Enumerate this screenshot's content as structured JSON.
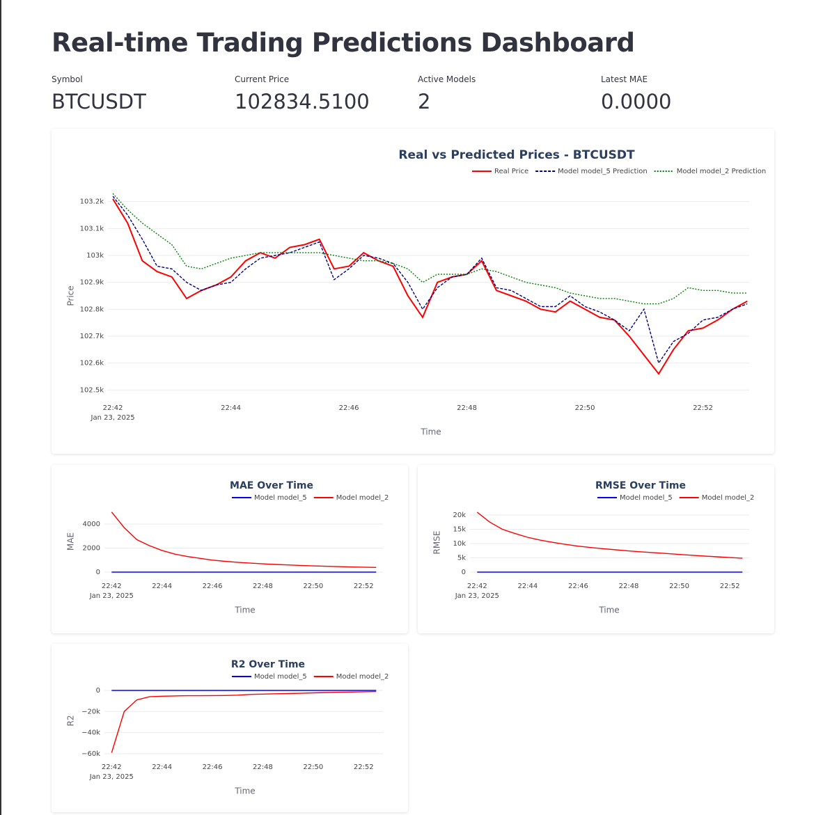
{
  "title": "Real-time Trading Predictions Dashboard",
  "metrics": [
    {
      "label": "Symbol",
      "value": "BTCUSDT"
    },
    {
      "label": "Current Price",
      "value": "102834.5100"
    },
    {
      "label": "Active Models",
      "value": "2"
    },
    {
      "label": "Latest MAE",
      "value": "0.0000"
    }
  ],
  "chart_data": [
    {
      "type": "line",
      "title": "Real vs Predicted Prices - BTCUSDT",
      "x_label": "Time",
      "y_label": "Price",
      "x_date_label": "Jan 23, 2025",
      "x": [
        "2025-01-23 22:42:00",
        "2025-01-23 22:42:15",
        "2025-01-23 22:42:30",
        "2025-01-23 22:42:45",
        "2025-01-23 22:43:00",
        "2025-01-23 22:43:15",
        "2025-01-23 22:43:30",
        "2025-01-23 22:43:45",
        "2025-01-23 22:44:00",
        "2025-01-23 22:44:15",
        "2025-01-23 22:44:30",
        "2025-01-23 22:44:45",
        "2025-01-23 22:45:00",
        "2025-01-23 22:45:15",
        "2025-01-23 22:45:30",
        "2025-01-23 22:45:45",
        "2025-01-23 22:46:00",
        "2025-01-23 22:46:15",
        "2025-01-23 22:46:30",
        "2025-01-23 22:46:45",
        "2025-01-23 22:47:00",
        "2025-01-23 22:47:15",
        "2025-01-23 22:47:30",
        "2025-01-23 22:47:45",
        "2025-01-23 22:48:00",
        "2025-01-23 22:48:15",
        "2025-01-23 22:48:30",
        "2025-01-23 22:48:45",
        "2025-01-23 22:49:00",
        "2025-01-23 22:49:15",
        "2025-01-23 22:49:30",
        "2025-01-23 22:49:45",
        "2025-01-23 22:50:00",
        "2025-01-23 22:50:15",
        "2025-01-23 22:50:30",
        "2025-01-23 22:50:45",
        "2025-01-23 22:51:00",
        "2025-01-23 22:51:15",
        "2025-01-23 22:51:30",
        "2025-01-23 22:51:45",
        "2025-01-23 22:52:00",
        "2025-01-23 22:52:15",
        "2025-01-23 22:52:30",
        "2025-01-23 22:52:45"
      ],
      "series": [
        {
          "name": "Real Price",
          "color": "#ff0000",
          "dash": "solid",
          "values": [
            103210,
            103120,
            102980,
            102940,
            102920,
            102840,
            102870,
            102890,
            102920,
            102980,
            103010,
            102990,
            103030,
            103040,
            103060,
            102950,
            102960,
            103010,
            102980,
            102960,
            102850,
            102770,
            102900,
            102920,
            102930,
            102980,
            102870,
            102850,
            102830,
            102800,
            102790,
            102830,
            102800,
            102770,
            102760,
            102700,
            102630,
            102560,
            102650,
            102720,
            102730,
            102760,
            102800,
            102830
          ]
        },
        {
          "name": "Model model_5 Prediction",
          "color": "#000080",
          "dash": "dash",
          "values": [
            103220,
            103150,
            103060,
            102960,
            102950,
            102900,
            102870,
            102890,
            102900,
            102950,
            102990,
            103000,
            103010,
            103030,
            103050,
            102910,
            102950,
            103000,
            102990,
            102970,
            102900,
            102800,
            102880,
            102920,
            102930,
            102990,
            102880,
            102870,
            102840,
            102810,
            102810,
            102850,
            102810,
            102790,
            102760,
            102720,
            102800,
            102600,
            102680,
            102710,
            102760,
            102770,
            102800,
            102820
          ]
        },
        {
          "name": "Model model_2 Prediction",
          "color": "#008000",
          "dash": "dot",
          "values": [
            103230,
            103170,
            103120,
            103080,
            103040,
            102960,
            102950,
            102970,
            102990,
            103000,
            103010,
            103010,
            103010,
            103010,
            103010,
            103000,
            102990,
            102980,
            102980,
            102970,
            102950,
            102900,
            102930,
            102930,
            102930,
            102950,
            102940,
            102920,
            102900,
            102890,
            102880,
            102860,
            102850,
            102840,
            102840,
            102830,
            102820,
            102820,
            102840,
            102880,
            102870,
            102870,
            102860,
            102860
          ]
        }
      ],
      "xlim": [
        "2025-01-23 22:41:55",
        "2025-01-23 22:52:47"
      ],
      "xticks": [
        {
          "value": "2025-01-23 22:42:00",
          "label": "22:42"
        },
        {
          "value": "2025-01-23 22:44:00",
          "label": "22:44"
        },
        {
          "value": "2025-01-23 22:46:00",
          "label": "22:46"
        },
        {
          "value": "2025-01-23 22:48:00",
          "label": "22:48"
        },
        {
          "value": "2025-01-23 22:50:00",
          "label": "22:50"
        },
        {
          "value": "2025-01-23 22:52:00",
          "label": "22:52"
        }
      ],
      "ylim": [
        102475,
        103225
      ],
      "yticks": [
        {
          "value": 102500,
          "label": "102.5k"
        },
        {
          "value": 102600,
          "label": "102.6k"
        },
        {
          "value": 102700,
          "label": "102.7k"
        },
        {
          "value": 102800,
          "label": "102.8k"
        },
        {
          "value": 102900,
          "label": "102.9k"
        },
        {
          "value": 103000,
          "label": "103k"
        },
        {
          "value": 103100,
          "label": "103.1k"
        },
        {
          "value": 103200,
          "label": "103.2k"
        }
      ],
      "grid": true
    },
    {
      "type": "line",
      "title": "MAE Over Time",
      "x_label": "Time",
      "y_label": "MAE",
      "x_date_label": "Jan 23, 2025",
      "x": [
        "2025-01-23 22:42:00",
        "2025-01-23 22:42:30",
        "2025-01-23 22:43:00",
        "2025-01-23 22:43:30",
        "2025-01-23 22:44:00",
        "2025-01-23 22:44:30",
        "2025-01-23 22:45:00",
        "2025-01-23 22:45:30",
        "2025-01-23 22:46:00",
        "2025-01-23 22:46:30",
        "2025-01-23 22:47:00",
        "2025-01-23 22:47:30",
        "2025-01-23 22:48:00",
        "2025-01-23 22:48:30",
        "2025-01-23 22:49:00",
        "2025-01-23 22:49:30",
        "2025-01-23 22:50:00",
        "2025-01-23 22:50:30",
        "2025-01-23 22:51:00",
        "2025-01-23 22:51:30",
        "2025-01-23 22:52:00",
        "2025-01-23 22:52:30"
      ],
      "series": [
        {
          "name": "Model model_5",
          "color": "#0000ff",
          "dash": "solid",
          "values": [
            0,
            0,
            0,
            0,
            0,
            0,
            0,
            0,
            0,
            0,
            0,
            0,
            0,
            0,
            0,
            0,
            0,
            0,
            0,
            0,
            0,
            0
          ]
        },
        {
          "name": "Model model_2",
          "color": "#ff0000",
          "dash": "solid",
          "values": [
            5000,
            3700,
            2700,
            2200,
            1800,
            1500,
            1300,
            1150,
            1000,
            900,
            820,
            750,
            690,
            640,
            600,
            560,
            520,
            490,
            460,
            430,
            410,
            390
          ]
        }
      ],
      "xlim": [
        "2025-01-23 22:41:43",
        "2025-01-23 22:52:46"
      ],
      "xticks": [
        {
          "value": "2025-01-23 22:42:00",
          "label": "22:42"
        },
        {
          "value": "2025-01-23 22:44:00",
          "label": "22:44"
        },
        {
          "value": "2025-01-23 22:46:00",
          "label": "22:46"
        },
        {
          "value": "2025-01-23 22:48:00",
          "label": "22:48"
        },
        {
          "value": "2025-01-23 22:50:00",
          "label": "22:50"
        },
        {
          "value": "2025-01-23 22:52:00",
          "label": "22:52"
        }
      ],
      "ylim": [
        -230,
        5330
      ],
      "yticks": [
        0,
        2000,
        4000
      ],
      "grid": true
    },
    {
      "type": "line",
      "title": "RMSE Over Time",
      "x_label": "Time",
      "y_label": "RMSE",
      "x_date_label": "Jan 23, 2025",
      "x": [
        "2025-01-23 22:42:00",
        "2025-01-23 22:42:30",
        "2025-01-23 22:43:00",
        "2025-01-23 22:43:30",
        "2025-01-23 22:44:00",
        "2025-01-23 22:44:30",
        "2025-01-23 22:45:00",
        "2025-01-23 22:45:30",
        "2025-01-23 22:46:00",
        "2025-01-23 22:46:30",
        "2025-01-23 22:47:00",
        "2025-01-23 22:47:30",
        "2025-01-23 22:48:00",
        "2025-01-23 22:48:30",
        "2025-01-23 22:49:00",
        "2025-01-23 22:49:30",
        "2025-01-23 22:50:00",
        "2025-01-23 22:50:30",
        "2025-01-23 22:51:00",
        "2025-01-23 22:51:30",
        "2025-01-23 22:52:00",
        "2025-01-23 22:52:30"
      ],
      "series": [
        {
          "name": "Model model_5",
          "color": "#0000ff",
          "dash": "solid",
          "values": [
            0,
            0,
            0,
            0,
            0,
            0,
            0,
            0,
            0,
            0,
            0,
            0,
            0,
            0,
            0,
            0,
            0,
            0,
            0,
            0,
            0,
            0
          ]
        },
        {
          "name": "Model model_2",
          "color": "#ff0000",
          "dash": "solid",
          "values": [
            21000,
            17500,
            15000,
            13500,
            12200,
            11200,
            10400,
            9700,
            9100,
            8600,
            8200,
            7800,
            7400,
            7100,
            6800,
            6500,
            6200,
            5900,
            5600,
            5350,
            5100,
            4850
          ]
        }
      ],
      "xlim": [
        "2025-01-23 22:41:43",
        "2025-01-23 22:52:46"
      ],
      "xticks": [
        {
          "value": "2025-01-23 22:42:00",
          "label": "22:42"
        },
        {
          "value": "2025-01-23 22:44:00",
          "label": "22:44"
        },
        {
          "value": "2025-01-23 22:46:00",
          "label": "22:46"
        },
        {
          "value": "2025-01-23 22:48:00",
          "label": "22:48"
        },
        {
          "value": "2025-01-23 22:50:00",
          "label": "22:50"
        },
        {
          "value": "2025-01-23 22:52:00",
          "label": "22:52"
        }
      ],
      "ylim": [
        -980,
        21700
      ],
      "yticks": [
        0,
        {
          "value": 5000,
          "label": "5k"
        },
        {
          "value": 10000,
          "label": "10k"
        },
        {
          "value": 15000,
          "label": "15k"
        },
        {
          "value": 20000,
          "label": "20k"
        }
      ],
      "grid": true
    },
    {
      "type": "line",
      "title": "R2 Over Time",
      "x_label": "Time",
      "y_label": "R2",
      "x_date_label": "Jan 23, 2025",
      "x": [
        "2025-01-23 22:42:00",
        "2025-01-23 22:42:30",
        "2025-01-23 22:43:00",
        "2025-01-23 22:43:30",
        "2025-01-23 22:44:00",
        "2025-01-23 22:44:30",
        "2025-01-23 22:45:00",
        "2025-01-23 22:45:30",
        "2025-01-23 22:46:00",
        "2025-01-23 22:46:30",
        "2025-01-23 22:47:00",
        "2025-01-23 22:47:30",
        "2025-01-23 22:48:00",
        "2025-01-23 22:48:30",
        "2025-01-23 22:49:00",
        "2025-01-23 22:49:30",
        "2025-01-23 22:50:00",
        "2025-01-23 22:50:30",
        "2025-01-23 22:51:00",
        "2025-01-23 22:51:30",
        "2025-01-23 22:52:00",
        "2025-01-23 22:52:30"
      ],
      "series": [
        {
          "name": "Model model_5",
          "color": "#0000ff",
          "dash": "solid",
          "values": [
            0,
            0,
            0,
            0,
            0,
            0,
            0,
            0,
            0,
            0,
            0,
            0,
            0,
            0,
            0,
            0,
            0,
            0,
            0,
            0,
            0,
            0
          ]
        },
        {
          "name": "Model model_2",
          "color": "#ff0000",
          "dash": "solid",
          "values": [
            -59000,
            -20000,
            -9000,
            -6000,
            -5500,
            -5200,
            -5000,
            -5000,
            -4900,
            -4800,
            -4500,
            -3800,
            -3500,
            -3200,
            -3000,
            -2700,
            -2300,
            -2000,
            -1700,
            -1500,
            -1300,
            -1100
          ]
        }
      ],
      "xlim": [
        "2025-01-23 22:41:43",
        "2025-01-23 22:52:46"
      ],
      "xticks": [
        {
          "value": "2025-01-23 22:42:00",
          "label": "22:42"
        },
        {
          "value": "2025-01-23 22:44:00",
          "label": "22:44"
        },
        {
          "value": "2025-01-23 22:46:00",
          "label": "22:46"
        },
        {
          "value": "2025-01-23 22:48:00",
          "label": "22:48"
        },
        {
          "value": "2025-01-23 22:50:00",
          "label": "22:50"
        },
        {
          "value": "2025-01-23 22:52:00",
          "label": "22:52"
        }
      ],
      "ylim": [
        -62000,
        4600
      ],
      "yticks": [
        0,
        {
          "value": -20000,
          "label": "−20k"
        },
        {
          "value": -40000,
          "label": "−40k"
        },
        {
          "value": -60000,
          "label": "−60k"
        }
      ],
      "grid": true
    }
  ]
}
